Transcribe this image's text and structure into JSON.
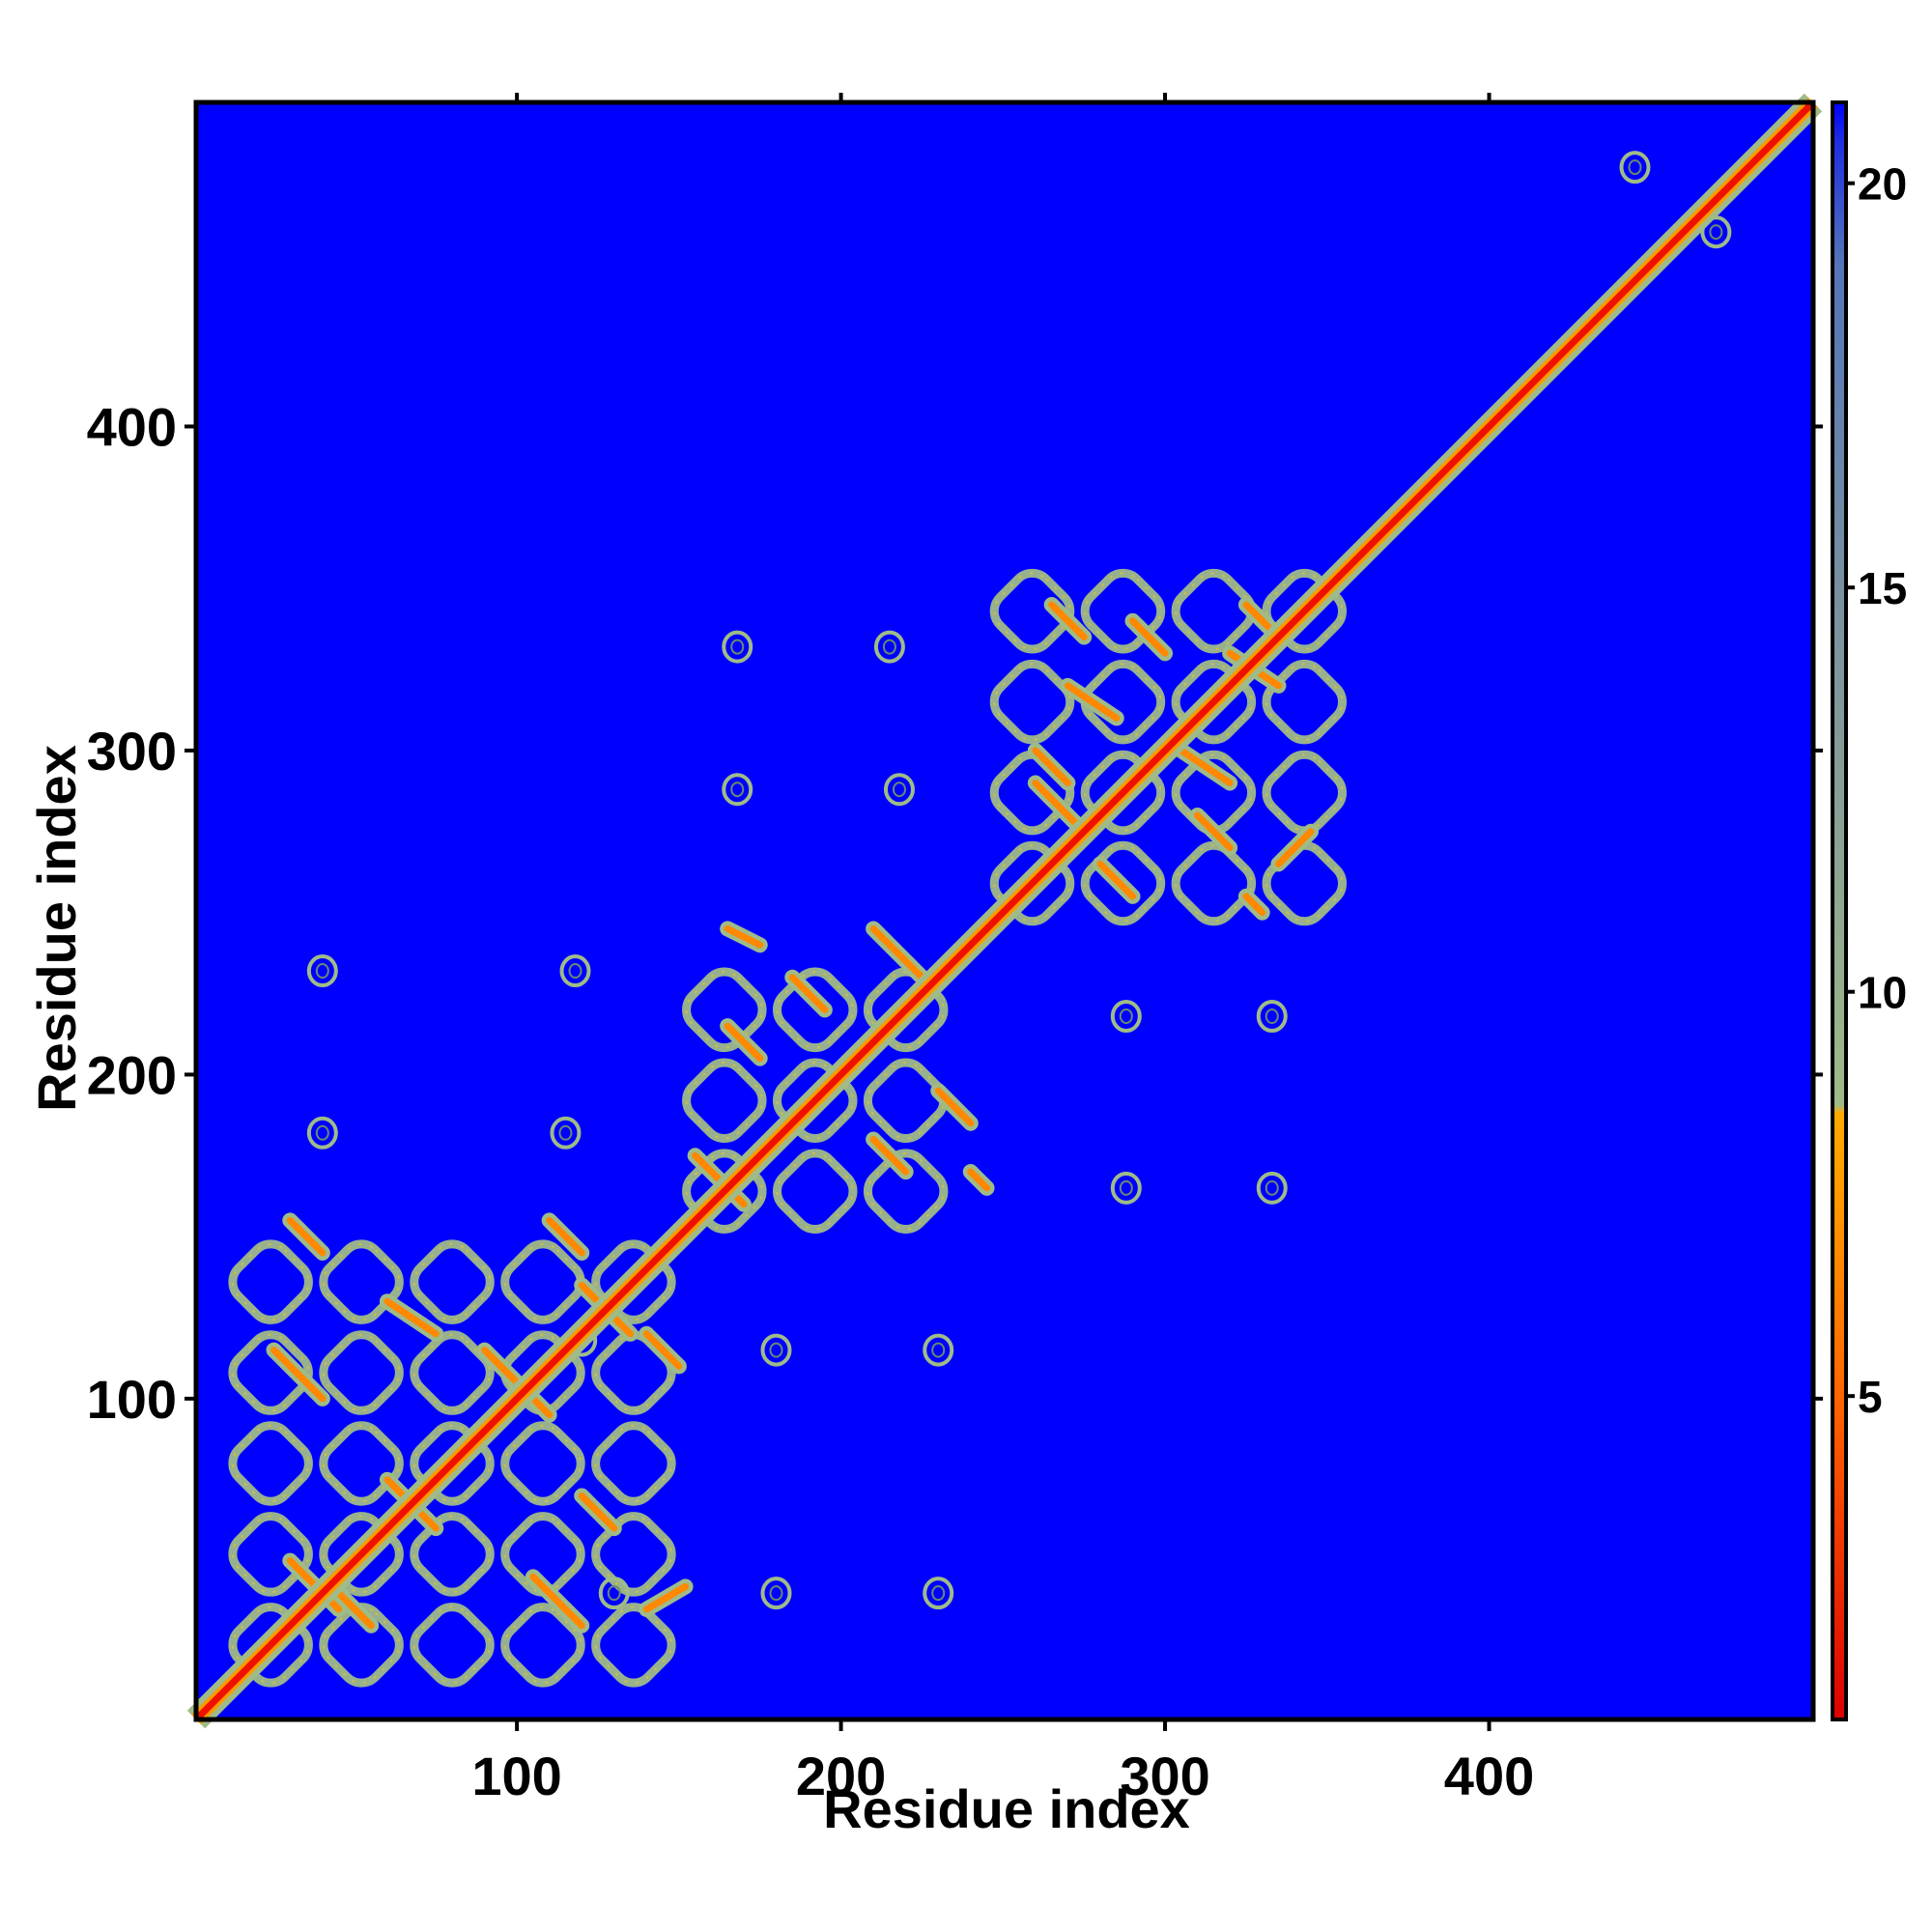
{
  "chart_data": {
    "type": "heatmap",
    "title": "",
    "xlabel": "Residue index",
    "ylabel": "Residue index",
    "xlim": [
      1,
      500
    ],
    "ylim": [
      1,
      500
    ],
    "x_ticks": [
      100,
      200,
      300,
      400
    ],
    "y_ticks": [
      100,
      200,
      300,
      400
    ],
    "colorbar": {
      "min": 1,
      "max": 21,
      "ticks": [
        5,
        10,
        15,
        20
      ],
      "stops": [
        {
          "value": 1,
          "color": "#dd0000"
        },
        {
          "value": 3,
          "color": "#ee3300"
        },
        {
          "value": 5,
          "color": "#ff6600"
        },
        {
          "value": 7.5,
          "color": "#ff9900"
        },
        {
          "value": 8.5,
          "color": "#ffaa00"
        },
        {
          "value": 8.6,
          "color": "#9fbb88"
        },
        {
          "value": 11,
          "color": "#8fa890"
        },
        {
          "value": 15,
          "color": "#7890a0"
        },
        {
          "value": 19,
          "color": "#5575b8"
        },
        {
          "value": 20.5,
          "color": "#2030e0"
        },
        {
          "value": 21,
          "color": "#0000ff"
        }
      ]
    },
    "background_color": "#0000ff",
    "diagonal": {
      "from": 1,
      "to": 500,
      "color": "#ee1100"
    },
    "domains": [
      {
        "range": [
          10,
          150
        ]
      },
      {
        "range": [
          150,
          245
        ]
      },
      {
        "range": [
          245,
          350
        ]
      }
    ],
    "contact_lines": [
      {
        "x": [
          30,
          45
        ],
        "y": [
          50,
          35
        ]
      },
      {
        "x": [
          45,
          55
        ],
        "y": [
          40,
          30
        ]
      },
      {
        "x": [
          105,
          120
        ],
        "y": [
          45,
          30
        ]
      },
      {
        "x": [
          140,
          152
        ],
        "y": [
          35,
          42
        ]
      },
      {
        "x": [
          60,
          75
        ],
        "y": [
          75,
          60
        ]
      },
      {
        "x": [
          120,
          130
        ],
        "y": [
          70,
          60
        ]
      },
      {
        "x": [
          25,
          40
        ],
        "y": [
          115,
          100
        ]
      },
      {
        "x": [
          90,
          110
        ],
        "y": [
          115,
          95
        ]
      },
      {
        "x": [
          60,
          75
        ],
        "y": [
          130,
          120
        ]
      },
      {
        "x": [
          120,
          135
        ],
        "y": [
          135,
          120
        ]
      },
      {
        "x": [
          140,
          150
        ],
        "y": [
          120,
          110
        ]
      },
      {
        "x": [
          30,
          40
        ],
        "y": [
          155,
          145
        ]
      },
      {
        "x": [
          110,
          120
        ],
        "y": [
          155,
          145
        ]
      },
      {
        "x": [
          155,
          170
        ],
        "y": [
          175,
          160
        ]
      },
      {
        "x": [
          210,
          220
        ],
        "y": [
          180,
          170
        ]
      },
      {
        "x": [
          230,
          240
        ],
        "y": [
          195,
          185
        ]
      },
      {
        "x": [
          165,
          175
        ],
        "y": [
          215,
          205
        ]
      },
      {
        "x": [
          185,
          195
        ],
        "y": [
          230,
          220
        ]
      },
      {
        "x": [
          210,
          225
        ],
        "y": [
          245,
          230
        ]
      },
      {
        "x": [
          165,
          175
        ],
        "y": [
          245,
          240
        ]
      },
      {
        "x": [
          240,
          245
        ],
        "y": [
          170,
          165
        ]
      },
      {
        "x": [
          260,
          275
        ],
        "y": [
          290,
          275
        ]
      },
      {
        "x": [
          280,
          290
        ],
        "y": [
          265,
          255
        ]
      },
      {
        "x": [
          310,
          320
        ],
        "y": [
          280,
          270
        ]
      },
      {
        "x": [
          335,
          345
        ],
        "y": [
          265,
          275
        ]
      },
      {
        "x": [
          260,
          270
        ],
        "y": [
          300,
          290
        ]
      },
      {
        "x": [
          305,
          320
        ],
        "y": [
          300,
          290
        ]
      },
      {
        "x": [
          270,
          285
        ],
        "y": [
          320,
          310
        ]
      },
      {
        "x": [
          320,
          335
        ],
        "y": [
          330,
          320
        ]
      },
      {
        "x": [
          265,
          275
        ],
        "y": [
          345,
          335
        ]
      },
      {
        "x": [
          290,
          300
        ],
        "y": [
          340,
          330
        ]
      },
      {
        "x": [
          325,
          335
        ],
        "y": [
          345,
          335
        ]
      },
      {
        "x": [
          325,
          330
        ],
        "y": [
          255,
          250
        ]
      }
    ],
    "islands": [
      {
        "x": 40,
        "y": 232
      },
      {
        "x": 40,
        "y": 182
      },
      {
        "x": 115,
        "y": 182
      },
      {
        "x": 118,
        "y": 232
      },
      {
        "x": 120,
        "y": 118
      },
      {
        "x": 130,
        "y": 40
      },
      {
        "x": 180,
        "y": 40
      },
      {
        "x": 230,
        "y": 40
      },
      {
        "x": 180,
        "y": 115
      },
      {
        "x": 230,
        "y": 115
      },
      {
        "x": 168,
        "y": 332
      },
      {
        "x": 168,
        "y": 288
      },
      {
        "x": 215,
        "y": 332
      },
      {
        "x": 218,
        "y": 288
      },
      {
        "x": 288,
        "y": 218
      },
      {
        "x": 288,
        "y": 165
      },
      {
        "x": 333,
        "y": 218
      },
      {
        "x": 333,
        "y": 165
      },
      {
        "x": 445,
        "y": 480
      },
      {
        "x": 470,
        "y": 460
      }
    ]
  }
}
